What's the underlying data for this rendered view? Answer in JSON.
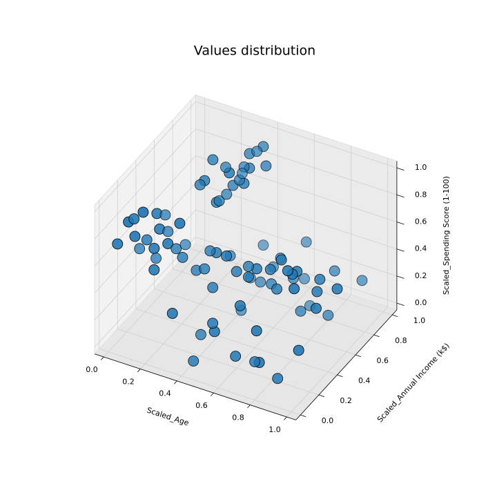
{
  "chart_data": {
    "type": "scatter3d",
    "title": "Values distribution",
    "x_label": "Scaled_Age",
    "y_label": "Scaled_Annual Income (k$)",
    "z_label": "Scaled_Spending Score (1-100)",
    "xlim": [
      -0.05,
      1.05
    ],
    "ylim": [
      -0.05,
      1.05
    ],
    "zlim": [
      -0.05,
      1.05
    ],
    "xticks": [
      {
        "value": 0,
        "label": "0.0"
      },
      0.2,
      0.4,
      0.6,
      0.8,
      {
        "value": 1,
        "label": "1.0"
      }
    ],
    "yticks": [
      {
        "value": 0,
        "label": "0.0"
      },
      0.2,
      0.4,
      0.6,
      0.8,
      {
        "value": 1,
        "label": "1.0"
      }
    ],
    "zticks": [
      {
        "value": 0,
        "label": "0.0"
      },
      0.2,
      0.4,
      0.6,
      0.8,
      {
        "value": 1,
        "label": "1.0"
      }
    ],
    "grid": true,
    "series": [
      {
        "color": "#1f77b4",
        "x": [
          0.05,
          0.1,
          0.12,
          0.15,
          0.2,
          0.08,
          0.25,
          0.3,
          0.18,
          0.1,
          0.22,
          0.14,
          0.25,
          0.3,
          0.2,
          0.35,
          0.28,
          0.4,
          0.22,
          0.32,
          0.27,
          0.38,
          0.24,
          0.3,
          0.34,
          0.42,
          0.29,
          0.26,
          0.36,
          0.31,
          0.45,
          0.6,
          0.75,
          0.35,
          0.5,
          0.85,
          0.65,
          0.4,
          0.55,
          0.7,
          0.48,
          0.8,
          0.62,
          0.38,
          0.9,
          0.58,
          0.02,
          0.1,
          0.2,
          0.3,
          0.4,
          0.5,
          0.6,
          0.7,
          0.8,
          0.9,
          1.0,
          0.05,
          0.15,
          0.25,
          0.35,
          0.45,
          0.55,
          0.65,
          0.75,
          0.85,
          0.95,
          0.12,
          0.33,
          0.52,
          0.68,
          0.88,
          0.42,
          0.78,
          0.35,
          0.45,
          0.55,
          0.65,
          0.75,
          0.85,
          0.95,
          0.4,
          0.6,
          0.8,
          0.5,
          0.7
        ],
        "y": [
          0.0,
          0.02,
          0.05,
          0.08,
          0.1,
          0.12,
          0.15,
          0.18,
          0.2,
          0.22,
          0.06,
          0.25,
          0.55,
          0.58,
          0.6,
          0.62,
          0.65,
          0.68,
          0.7,
          0.72,
          0.75,
          0.78,
          0.8,
          0.83,
          0.86,
          0.88,
          0.9,
          0.94,
          0.97,
          1.0,
          0.55,
          0.58,
          0.6,
          0.63,
          0.66,
          0.7,
          0.72,
          0.75,
          0.78,
          0.8,
          0.84,
          0.87,
          0.9,
          0.93,
          0.97,
          1.0,
          0.3,
          0.32,
          0.34,
          0.36,
          0.38,
          0.4,
          0.42,
          0.44,
          0.46,
          0.48,
          0.5,
          0.52,
          0.54,
          0.31,
          0.35,
          0.39,
          0.43,
          0.47,
          0.51,
          0.33,
          0.37,
          0.41,
          0.45,
          0.49,
          0.53,
          0.55,
          0.3,
          0.4,
          0.0,
          0.03,
          0.06,
          0.09,
          0.12,
          0.15,
          0.18,
          0.21,
          0.24,
          0.05,
          0.14,
          0.2
        ],
        "z": [
          0.77,
          0.94,
          0.82,
          0.99,
          0.73,
          0.88,
          0.75,
          0.9,
          0.79,
          0.66,
          0.61,
          0.85,
          0.92,
          0.76,
          0.83,
          0.97,
          0.71,
          0.87,
          0.95,
          0.79,
          0.68,
          0.9,
          0.83,
          0.74,
          0.93,
          0.86,
          0.78,
          0.69,
          0.91,
          0.83,
          0.05,
          0.29,
          0.14,
          0.35,
          0.2,
          0.08,
          0.25,
          0.12,
          0.31,
          0.01,
          0.17,
          0.26,
          0.1,
          0.22,
          0.16,
          0.28,
          0.5,
          0.45,
          0.55,
          0.42,
          0.58,
          0.47,
          0.52,
          0.4,
          0.56,
          0.44,
          0.49,
          0.6,
          0.41,
          0.53,
          0.46,
          0.57,
          0.43,
          0.5,
          0.48,
          0.55,
          0.42,
          0.59,
          0.51,
          0.45,
          0.54,
          0.47,
          0.39,
          0.6,
          0.39,
          0.06,
          0.3,
          0.14,
          0.35,
          0.02,
          0.25,
          0.1,
          0.38,
          0.19,
          0.28,
          0.04
        ]
      }
    ]
  }
}
